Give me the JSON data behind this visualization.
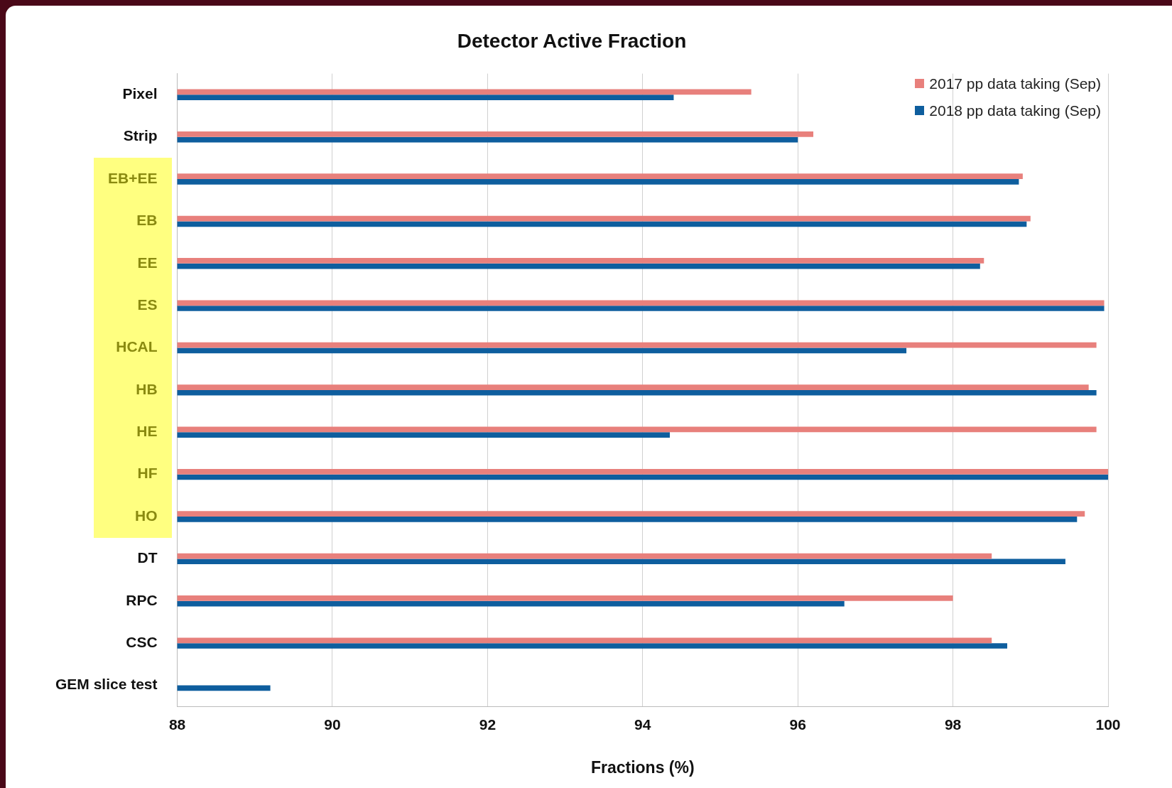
{
  "chart_data": {
    "type": "bar",
    "orientation": "horizontal",
    "title": "Detector Active Fraction",
    "xlabel": "Fractions (%)",
    "categories": [
      "Pixel",
      "Strip",
      "EB+EE",
      "EB",
      "EE",
      "ES",
      "HCAL",
      "HB",
      "HE",
      "HF",
      "HO",
      "DT",
      "RPC",
      "CSC",
      "GEM slice test"
    ],
    "series": [
      {
        "name": "2017 pp data taking (Sep)",
        "color": "#e8807c",
        "values": [
          95.4,
          96.2,
          98.9,
          99.0,
          98.4,
          99.95,
          99.85,
          99.75,
          99.85,
          100,
          99.7,
          98.5,
          98.0,
          98.5,
          null
        ]
      },
      {
        "name": "2018 pp data taking (Sep)",
        "color": "#0e5e9e",
        "values": [
          94.4,
          96.0,
          98.85,
          98.95,
          98.35,
          99.95,
          97.4,
          99.85,
          94.35,
          100,
          99.6,
          99.45,
          96.6,
          98.7,
          89.2
        ]
      }
    ],
    "xlim": [
      88,
      100
    ],
    "xticks": [
      88,
      90,
      92,
      94,
      96,
      98,
      100
    ],
    "grid": "x",
    "legend": "top right"
  }
}
